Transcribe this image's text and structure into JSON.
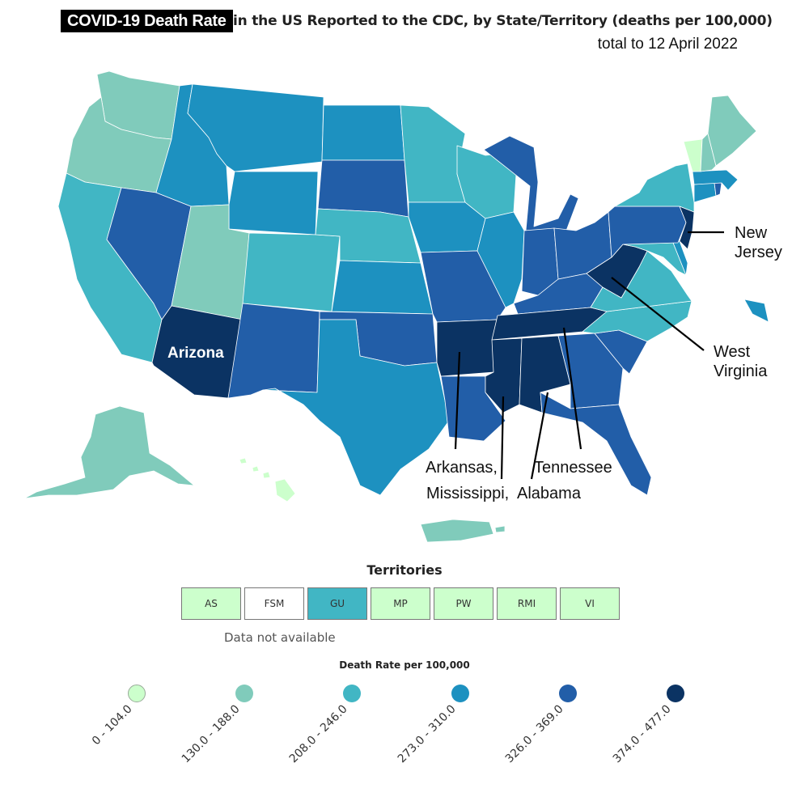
{
  "header": {
    "title_badge": "COVID-19 Death Rate",
    "title_rest": "in the US Reported to the CDC, by State/Territory (deaths per 100,000)",
    "subtitle": "total to 12 April 2022"
  },
  "colors": {
    "c1": "#ccffcc",
    "c2": "#80cbbb",
    "c3": "#41b6c4",
    "c4": "#1d91c0",
    "c5": "#225ea8",
    "c6": "#0b3363"
  },
  "annotations": {
    "arizona": "Arizona",
    "new_jersey_1": "New",
    "new_jersey_2": "Jersey",
    "west_virginia_1": "West",
    "west_virginia_2": "Virginia",
    "arkansas": "Arkansas,",
    "mississippi": "Mississippi,",
    "tennessee": "Tennessee",
    "alabama": "Alabama"
  },
  "territories": {
    "title": "Territories",
    "items": [
      {
        "label": "AS",
        "bin": "c1"
      },
      {
        "label": "FSM",
        "bin": "none"
      },
      {
        "label": "GU",
        "bin": "c3"
      },
      {
        "label": "MP",
        "bin": "c1"
      },
      {
        "label": "PW",
        "bin": "c1"
      },
      {
        "label": "RMI",
        "bin": "c1"
      },
      {
        "label": "VI",
        "bin": "c1"
      }
    ],
    "note": "Data not available"
  },
  "legend": {
    "title": "Death Rate per 100,000",
    "bins": [
      {
        "label": "0 - 104.0",
        "color": "#ccffcc"
      },
      {
        "label": "130.0 - 188.0",
        "color": "#80cbbb"
      },
      {
        "label": "208.0 - 246.0",
        "color": "#41b6c4"
      },
      {
        "label": "273.0 - 310.0",
        "color": "#1d91c0"
      },
      {
        "label": "326.0 - 369.0",
        "color": "#225ea8"
      },
      {
        "label": "374.0 - 477.0",
        "color": "#0b3363"
      }
    ]
  },
  "states": [
    {
      "name": "Washington",
      "bin": "c2"
    },
    {
      "name": "Oregon",
      "bin": "c2"
    },
    {
      "name": "California",
      "bin": "c3"
    },
    {
      "name": "Nevada",
      "bin": "c5"
    },
    {
      "name": "Idaho",
      "bin": "c4"
    },
    {
      "name": "Montana",
      "bin": "c4"
    },
    {
      "name": "Wyoming",
      "bin": "c4"
    },
    {
      "name": "Utah",
      "bin": "c2"
    },
    {
      "name": "Arizona",
      "bin": "c6"
    },
    {
      "name": "Colorado",
      "bin": "c3"
    },
    {
      "name": "New Mexico",
      "bin": "c5"
    },
    {
      "name": "North Dakota",
      "bin": "c4"
    },
    {
      "name": "South Dakota",
      "bin": "c5"
    },
    {
      "name": "Nebraska",
      "bin": "c3"
    },
    {
      "name": "Kansas",
      "bin": "c4"
    },
    {
      "name": "Oklahoma",
      "bin": "c5"
    },
    {
      "name": "Texas",
      "bin": "c4"
    },
    {
      "name": "Minnesota",
      "bin": "c3"
    },
    {
      "name": "Iowa",
      "bin": "c4"
    },
    {
      "name": "Missouri",
      "bin": "c5"
    },
    {
      "name": "Arkansas",
      "bin": "c6"
    },
    {
      "name": "Louisiana",
      "bin": "c5"
    },
    {
      "name": "Wisconsin",
      "bin": "c3"
    },
    {
      "name": "Illinois",
      "bin": "c4"
    },
    {
      "name": "Michigan",
      "bin": "c5"
    },
    {
      "name": "Indiana",
      "bin": "c5"
    },
    {
      "name": "Ohio",
      "bin": "c5"
    },
    {
      "name": "Kentucky",
      "bin": "c5"
    },
    {
      "name": "Tennessee",
      "bin": "c6"
    },
    {
      "name": "Mississippi",
      "bin": "c6"
    },
    {
      "name": "Alabama",
      "bin": "c6"
    },
    {
      "name": "Georgia",
      "bin": "c5"
    },
    {
      "name": "Florida",
      "bin": "c5"
    },
    {
      "name": "South Carolina",
      "bin": "c5"
    },
    {
      "name": "North Carolina",
      "bin": "c3"
    },
    {
      "name": "Virginia",
      "bin": "c3"
    },
    {
      "name": "West Virginia",
      "bin": "c6"
    },
    {
      "name": "Pennsylvania",
      "bin": "c5"
    },
    {
      "name": "New York",
      "bin": "c3"
    },
    {
      "name": "New Jersey",
      "bin": "c6"
    },
    {
      "name": "Delaware",
      "bin": "c4"
    },
    {
      "name": "Maryland",
      "bin": "c3"
    },
    {
      "name": "Connecticut",
      "bin": "c4"
    },
    {
      "name": "Rhode Island",
      "bin": "c5"
    },
    {
      "name": "Massachusetts",
      "bin": "c4"
    },
    {
      "name": "Vermont",
      "bin": "c1"
    },
    {
      "name": "New Hampshire",
      "bin": "c2"
    },
    {
      "name": "Maine",
      "bin": "c2"
    },
    {
      "name": "Alaska",
      "bin": "c2"
    },
    {
      "name": "Hawaii",
      "bin": "c1"
    },
    {
      "name": "Puerto Rico",
      "bin": "c2"
    }
  ]
}
